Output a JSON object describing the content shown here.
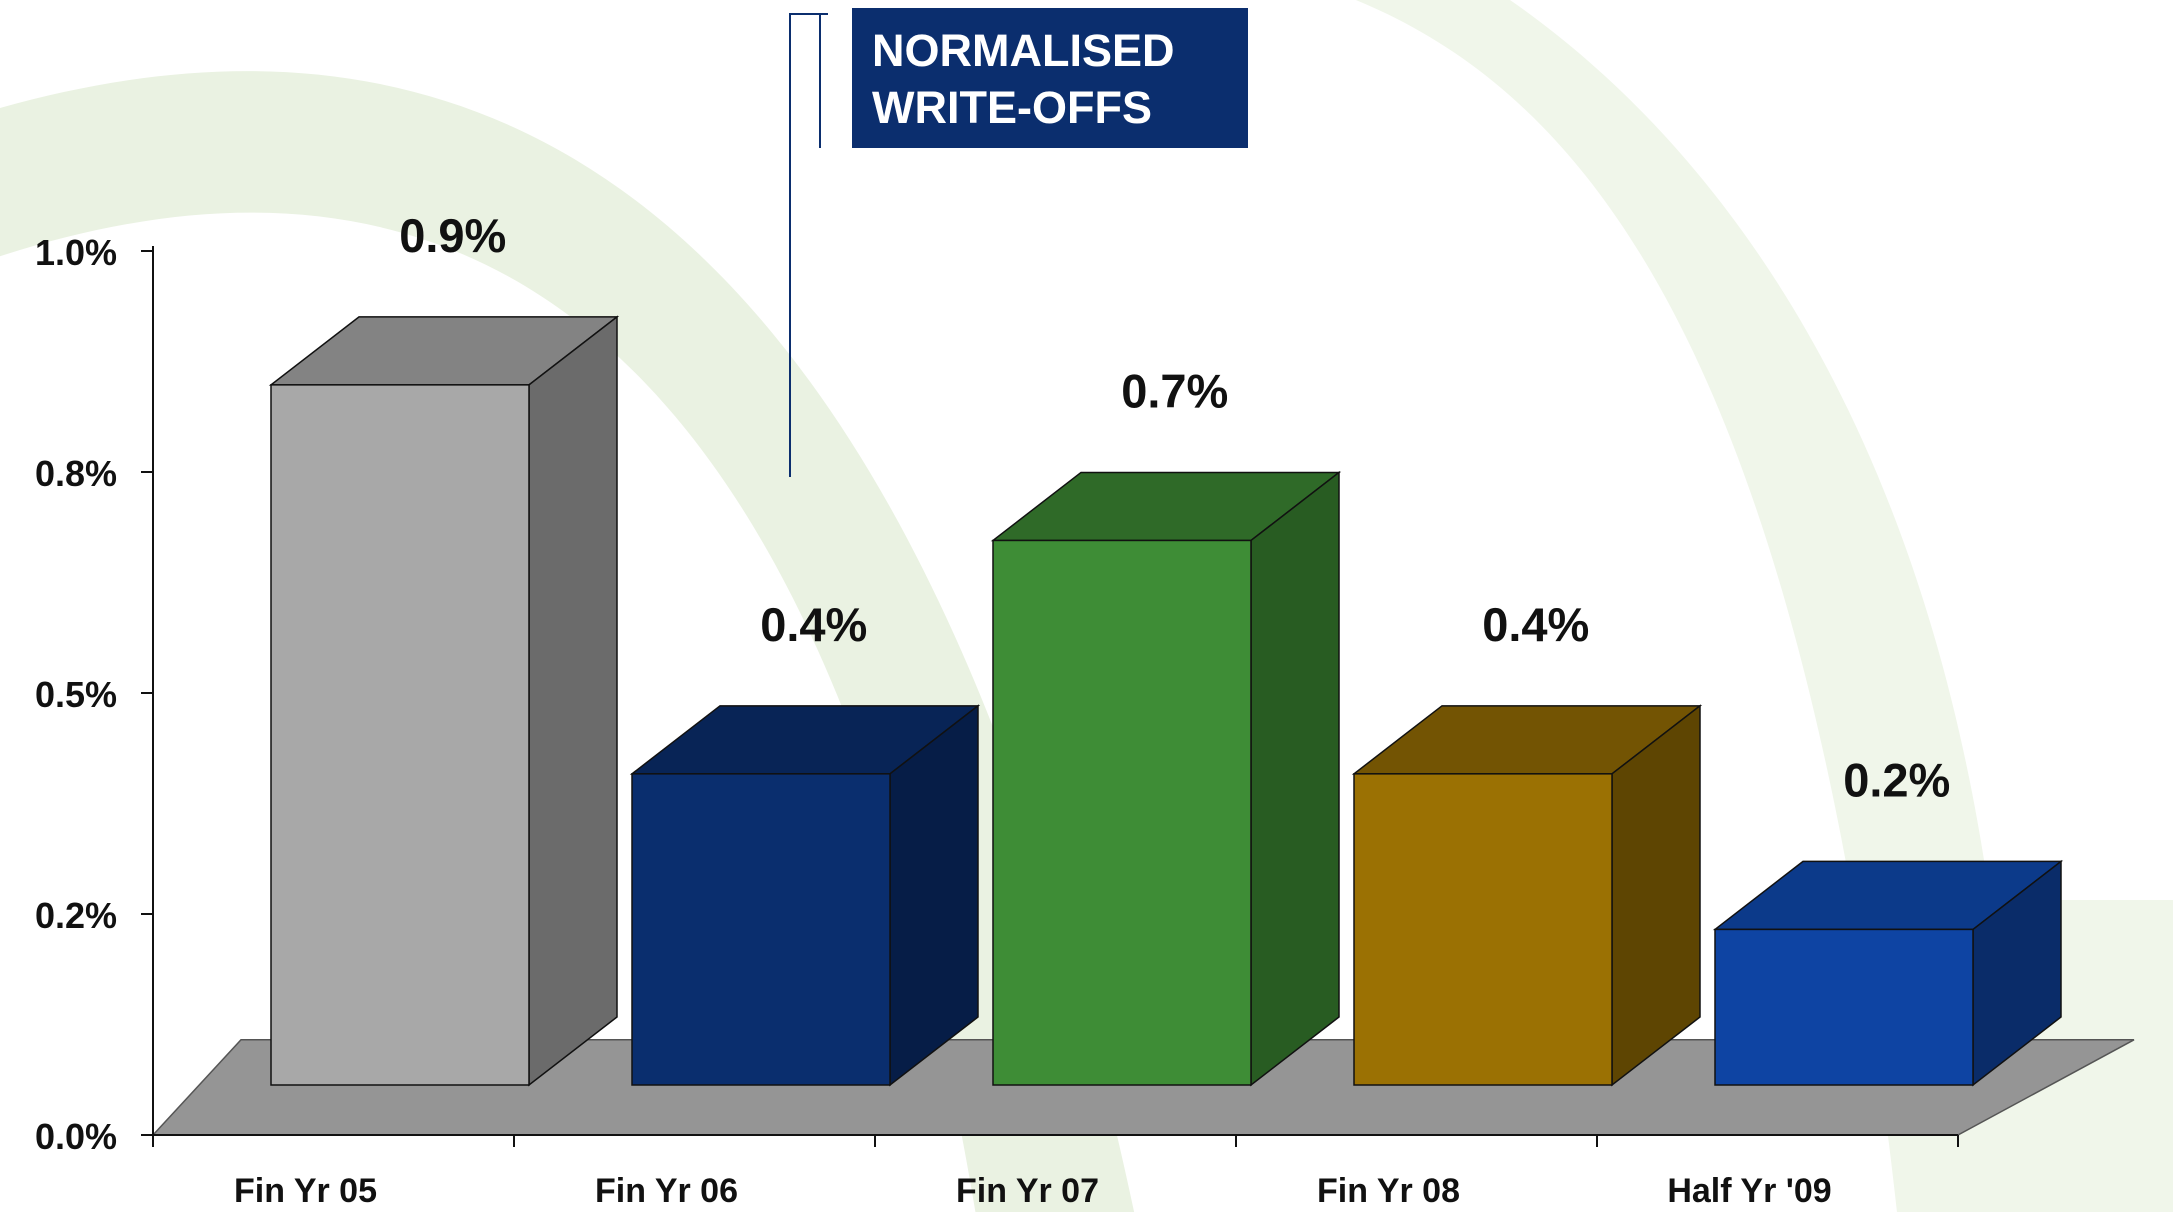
{
  "chart_data": {
    "type": "bar",
    "title": "",
    "xlabel": "",
    "ylabel": "",
    "categories": [
      "Fin Yr 05",
      "Fin Yr 06",
      "Fin Yr 07",
      "Fin Yr 08",
      "Half Yr '09"
    ],
    "values": [
      0.9,
      0.4,
      0.7,
      0.4,
      0.2
    ],
    "data_labels": [
      "0.9%",
      "0.4%",
      "0.7%",
      "0.4%",
      "0.2%"
    ],
    "y_ticks": [
      0.0,
      0.25,
      0.5,
      0.75,
      1.0
    ],
    "y_tick_labels": [
      "0.0%",
      "0.2%",
      "0.5%",
      "0.8%",
      "1.0%"
    ],
    "ylim": [
      0,
      1.0
    ],
    "grid": false,
    "style": "3d",
    "legend": {
      "lines": [
        "NORMALISED",
        "WRITE-OFFS"
      ],
      "placement": "top-center"
    },
    "bar_colors": [
      {
        "front": "#a8a8a8",
        "side": "#6b6b6b",
        "top": "#838383"
      },
      {
        "front": "#0a2e6e",
        "side": "#061d47",
        "top": "#082456"
      },
      {
        "front": "#3e8d36",
        "side": "#285c22",
        "top": "#2f6a28"
      },
      {
        "front": "#9b7103",
        "side": "#5e4502",
        "top": "#735403"
      },
      {
        "front": "#0e44a3",
        "side": "#0a2c69",
        "top": "#0c3a8a"
      }
    ],
    "floor_color": "#959595",
    "background_accent": "#e4efd9"
  }
}
